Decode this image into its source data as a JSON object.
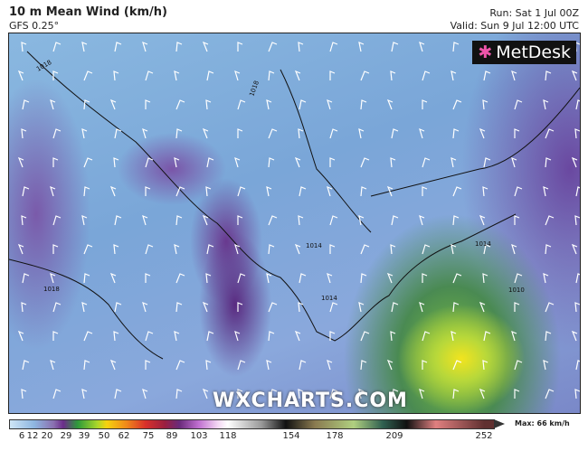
{
  "header": {
    "title": "10 m Mean Wind (km/h)",
    "model": "GFS 0.25°",
    "run": "Run: Sat 1 Jul 00Z",
    "valid": "Valid: Sun 9 Jul 12:00 UTC"
  },
  "logo": {
    "text": "MetDesk"
  },
  "watermark": "WXCHARTS.COM",
  "map": {
    "isobar_labels": [
      "1018",
      "1018",
      "1018",
      "1014",
      "1014",
      "1014",
      "1010"
    ],
    "colors": {
      "calm": "#8ab8e0",
      "moderate": "#6b2d8a",
      "strong": "#7cc040",
      "max": "#f2e41e"
    }
  },
  "legend": {
    "ticks": [
      "6",
      "12",
      "20",
      "29",
      "39",
      "50",
      "62",
      "75",
      "89",
      "103",
      "118",
      "154",
      "178",
      "209",
      "252"
    ],
    "max_label": "Max: 66 km/h"
  }
}
